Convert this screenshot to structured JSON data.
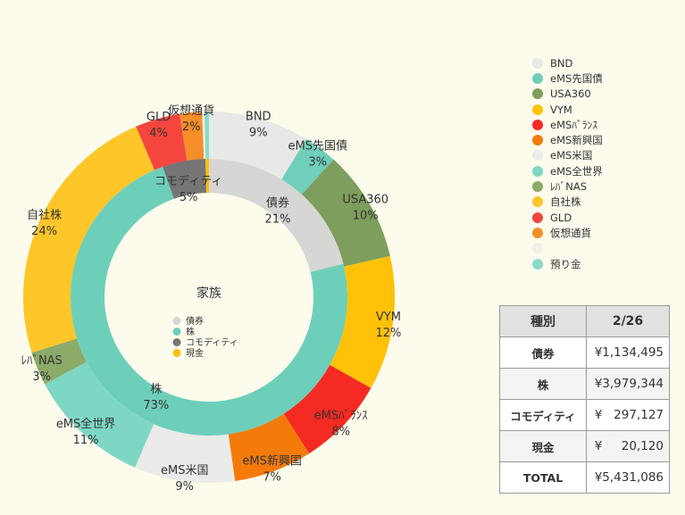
{
  "chart_data": {
    "type": "pie",
    "center_title": "家族",
    "outer": [
      {
        "label": "BND",
        "value": 9,
        "pct": "9%",
        "color": "#e8e8e6"
      },
      {
        "label": "eMS先国債",
        "value": 3,
        "pct": "3%",
        "color": "#6fcfbb"
      },
      {
        "label": "USA360",
        "value": 10,
        "pct": "10%",
        "color": "#7d9e5c"
      },
      {
        "label": "VYM",
        "value": 12,
        "pct": "12%",
        "color": "#ffc208"
      },
      {
        "label": "eMSﾊﾞﾗﾝｽ",
        "value": 8,
        "pct": "8%",
        "color": "#f52a22"
      },
      {
        "label": "eMS新興国",
        "value": 7,
        "pct": "7%",
        "color": "#f47b0a"
      },
      {
        "label": "eMS米国",
        "value": 9,
        "pct": "9%",
        "color": "#ebebea"
      },
      {
        "label": "eMS全世界",
        "value": 11,
        "pct": "11%",
        "color": "#7ed7c4"
      },
      {
        "label": "ﾚﾊﾞNAS",
        "value": 3,
        "pct": "3%",
        "color": "#8caa68"
      },
      {
        "label": "自社株",
        "value": 24,
        "pct": "24%",
        "color": "#ffc629"
      },
      {
        "label": "GLD",
        "value": 4,
        "pct": "4%",
        "color": "#f4463e"
      },
      {
        "label": "仮想通貨",
        "value": 2,
        "pct": "2%",
        "color": "#f68e2a"
      },
      {
        "label": "",
        "value": 0.2,
        "pct": "",
        "color": "#f0efe8"
      },
      {
        "label": "",
        "value": 0.4,
        "pct": "",
        "color": "#88dcc8"
      }
    ],
    "inner": [
      {
        "label": "債券",
        "value": 21,
        "pct": "21%",
        "color": "#d6d6d5"
      },
      {
        "label": "株",
        "value": 73,
        "pct": "73%",
        "color": "#6dcfba"
      },
      {
        "label": "コモディティ",
        "value": 5,
        "pct": "5%",
        "color": "#757575"
      },
      {
        "label": "現金",
        "value": 0.4,
        "pct": "",
        "color": "#ffc107"
      }
    ],
    "legend": [
      {
        "label": "BND",
        "color": "#e8e8e6"
      },
      {
        "label": "eMS先国債",
        "color": "#6fcfbb"
      },
      {
        "label": "USA360",
        "color": "#7d9e5c"
      },
      {
        "label": "VYM",
        "color": "#ffc208"
      },
      {
        "label": "eMSﾊﾞﾗﾝｽ",
        "color": "#f52a22"
      },
      {
        "label": "eMS新興国",
        "color": "#f47b0a"
      },
      {
        "label": "eMS米国",
        "color": "#ebebea"
      },
      {
        "label": "eMS全世界",
        "color": "#7ed7c4"
      },
      {
        "label": "ﾚﾊﾞNAS",
        "color": "#8caa68"
      },
      {
        "label": "自社株",
        "color": "#ffc629"
      },
      {
        "label": "GLD",
        "color": "#f4463e"
      },
      {
        "label": "仮想通貨",
        "color": "#f68e2a"
      },
      {
        "label": "",
        "color": "#f0efe8"
      },
      {
        "label": "預り金",
        "color": "#88dcc8"
      }
    ],
    "inner_legend": [
      {
        "label": "債券",
        "color": "#d6d6d5"
      },
      {
        "label": "株",
        "color": "#6dcfba"
      },
      {
        "label": "コモディティ",
        "color": "#757575"
      },
      {
        "label": "現金",
        "color": "#ffc107"
      }
    ]
  },
  "table": {
    "headers": [
      "種別",
      "2/26"
    ],
    "rows": [
      {
        "label": "債券",
        "value": "¥1,134,495"
      },
      {
        "label": "株",
        "value": "¥3,979,344"
      },
      {
        "label": "コモディティ",
        "value": "¥   297,127"
      },
      {
        "label": "現金",
        "value": "¥     20,120"
      },
      {
        "label": "TOTAL",
        "value": "¥5,431,086"
      }
    ]
  }
}
